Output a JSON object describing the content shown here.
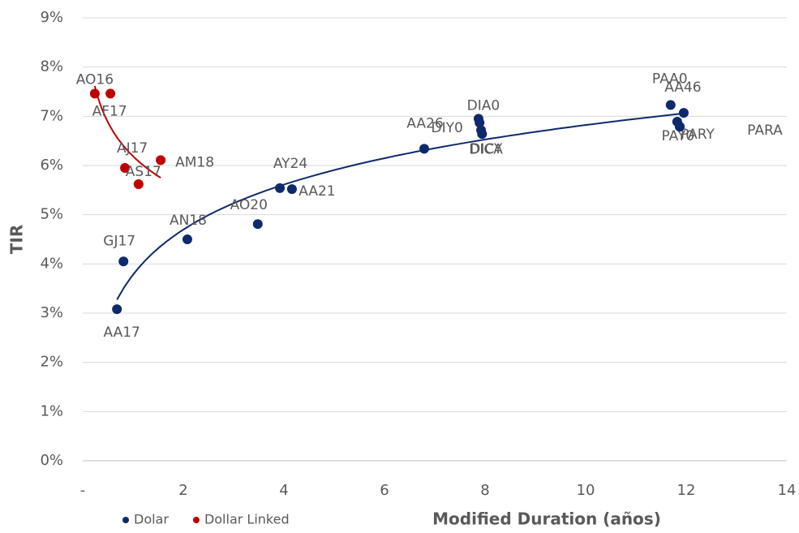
{
  "chart_data": {
    "type": "scatter",
    "x_label": "Modified Duration (años)",
    "y_label": "TIR",
    "xlim": [
      0,
      14
    ],
    "xticks": [
      {
        "value": 0,
        "label": "-"
      },
      2,
      4,
      6,
      8,
      10,
      12,
      14
    ],
    "ylim": [
      0,
      9
    ],
    "yticks": [
      {
        "value": 0,
        "label": "0%"
      },
      {
        "value": 1,
        "label": "1%"
      },
      {
        "value": 2,
        "label": "2%"
      },
      {
        "value": 3,
        "label": "3%"
      },
      {
        "value": 4,
        "label": "4%"
      },
      {
        "value": 5,
        "label": "5%"
      },
      {
        "value": 6,
        "label": "6%"
      },
      {
        "value": 7,
        "label": "7%"
      },
      {
        "value": 8,
        "label": "8%"
      },
      {
        "value": 9,
        "label": "9%"
      }
    ],
    "grid": true,
    "trendline": "logarithmic",
    "legend": "bottom-left",
    "series": [
      {
        "name": "Dolar",
        "color": "#0f2a6b",
        "labels": [
          "AA17",
          "GJ17",
          "AN18",
          "AO20",
          "AY24",
          "AA21",
          "AA26",
          "DIA0",
          "DIY0",
          "DICA",
          "DICY",
          "PAA0",
          "AA46",
          "PAY0",
          "PARY",
          "PARA"
        ],
        "x": [
          0.68,
          0.81,
          2.08,
          3.48,
          3.92,
          4.16,
          6.79,
          7.87,
          7.89,
          7.92,
          7.94,
          11.69,
          11.95,
          11.82,
          11.87,
          11.87
        ],
        "values": [
          3.08,
          4.05,
          4.5,
          4.81,
          5.54,
          5.52,
          6.34,
          6.95,
          6.87,
          6.72,
          6.64,
          7.23,
          7.07,
          6.89,
          6.79,
          6.79
        ]
      },
      {
        "name": "Dollar Linked",
        "color": "#c00000",
        "labels": [
          "AO16",
          "AF17",
          "AJ17",
          "AS17",
          "AM18"
        ],
        "x": [
          0.24,
          0.55,
          0.84,
          1.11,
          1.55
        ],
        "values": [
          7.46,
          7.46,
          5.95,
          5.62,
          6.11
        ]
      }
    ]
  }
}
